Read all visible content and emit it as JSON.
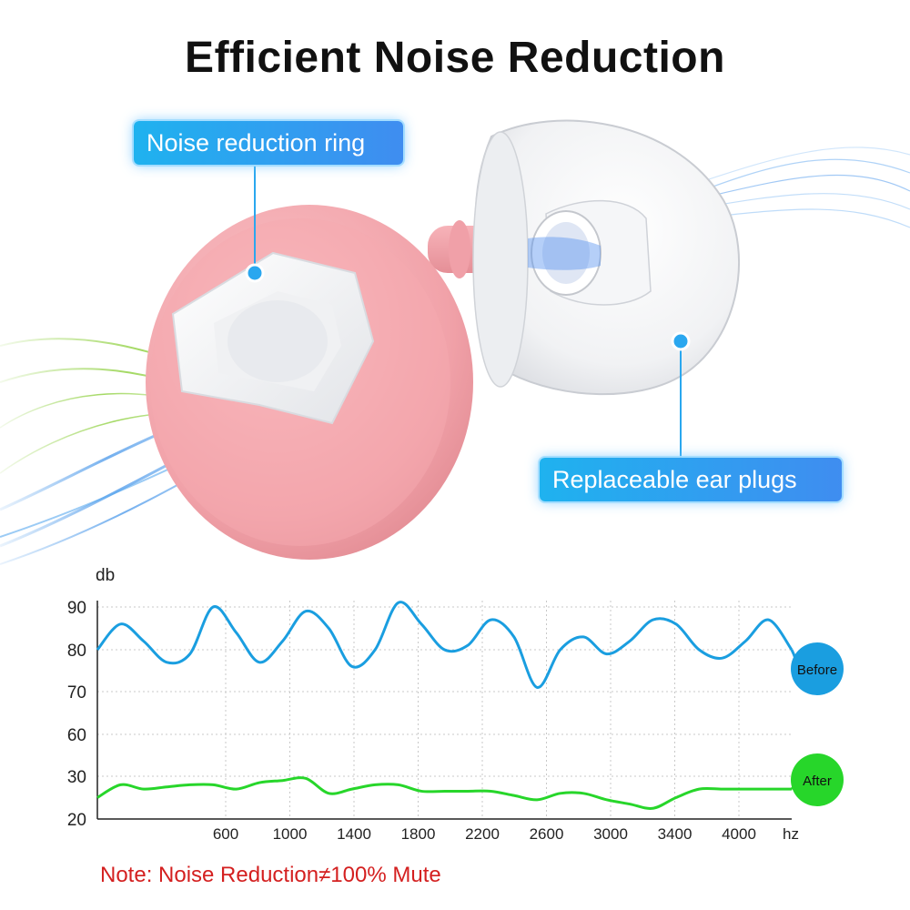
{
  "title": "Efficient Noise Reduction",
  "callouts": {
    "ring": "Noise reduction ring",
    "plugs": "Replaceable ear plugs"
  },
  "note": "Note: Noise Reduction≠100% Mute",
  "colors": {
    "before": "#1a9ee0",
    "after": "#27d62a",
    "note": "#d42020",
    "callout": "#2aa7ef",
    "earplug_body": "#f1a2a9"
  },
  "chart_data": {
    "type": "line",
    "ylabel": "db",
    "xlabel": "hz",
    "y_ticks": [
      "90",
      "80",
      "70",
      "60",
      "30",
      "20"
    ],
    "x_ticks": [
      "600",
      "1000",
      "1400",
      "1800",
      "2200",
      "2600",
      "3000",
      "3400",
      "4000"
    ],
    "grid": true,
    "series": [
      {
        "name": "Before",
        "x": [
          0,
          0.5,
          1,
          1.5,
          2,
          2.5,
          3,
          3.5,
          4,
          4.5,
          5,
          5.5,
          6,
          6.5,
          7,
          7.5,
          8,
          8.5,
          9,
          9.5,
          10,
          10.5,
          11,
          11.5,
          12,
          12.5,
          13,
          13.5,
          14,
          14.5,
          15
        ],
        "values": [
          80,
          86,
          82,
          77,
          79,
          90,
          84,
          77,
          82,
          89,
          85,
          76,
          80,
          91,
          86,
          80,
          81,
          87,
          83,
          71,
          80,
          83,
          79,
          82,
          87,
          86,
          80,
          78,
          82,
          87,
          80
        ]
      },
      {
        "name": "After",
        "x": [
          0,
          0.5,
          1,
          1.5,
          2,
          2.5,
          3,
          3.5,
          4,
          4.5,
          5,
          5.5,
          6,
          6.5,
          7,
          7.5,
          8,
          8.5,
          9,
          9.5,
          10,
          10.5,
          11,
          11.5,
          12,
          12.5,
          13,
          13.5,
          14,
          14.5,
          15
        ],
        "values": [
          25,
          28,
          27,
          27.5,
          28,
          28,
          27,
          28.5,
          29,
          29.5,
          26,
          27,
          28,
          28,
          26.5,
          26.5,
          26.5,
          26.5,
          25.5,
          24.5,
          26,
          26,
          24.5,
          23.5,
          22.5,
          25,
          27,
          27,
          27,
          27,
          27
        ]
      }
    ]
  }
}
